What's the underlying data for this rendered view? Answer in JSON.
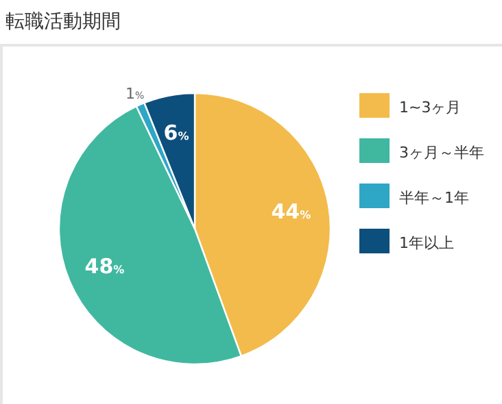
{
  "chart_data": {
    "type": "pie",
    "title": "転職活動期間",
    "categories": [
      "1~3ヶ月",
      "3ヶ月～半年",
      "半年～1年",
      "1年以上"
    ],
    "values": [
      44,
      48,
      1,
      6
    ],
    "colors": [
      "#f3bb4b",
      "#40b8a0",
      "#2ea6c6",
      "#0d4f7c"
    ],
    "value_labels": [
      "44%",
      "48%",
      "1%",
      "6%"
    ],
    "legend": "right"
  }
}
